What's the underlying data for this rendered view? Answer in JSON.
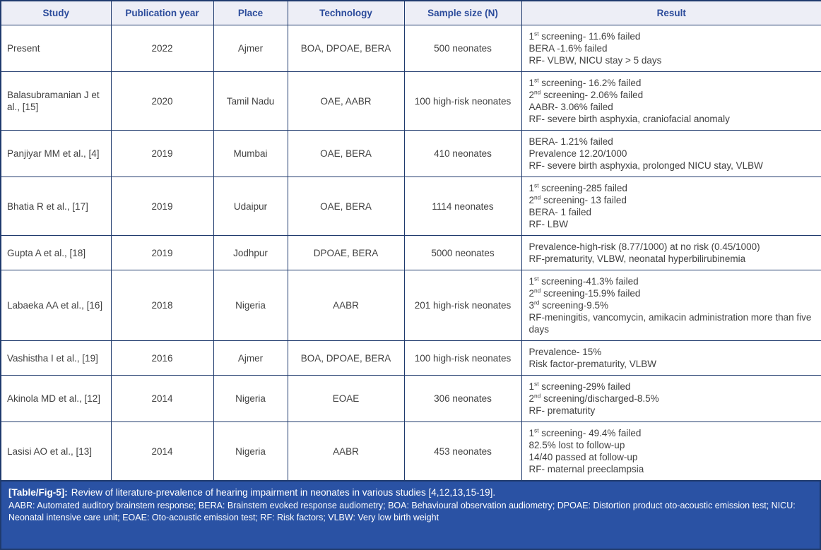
{
  "table": {
    "columns": [
      {
        "key": "study",
        "label": "Study"
      },
      {
        "key": "year",
        "label": "Publication year"
      },
      {
        "key": "place",
        "label": "Place"
      },
      {
        "key": "technology",
        "label": "Technology"
      },
      {
        "key": "sample",
        "label": "Sample size (N)"
      },
      {
        "key": "result",
        "label": "Result"
      }
    ],
    "rows": [
      {
        "study": "Present",
        "year": "2022",
        "place": "Ajmer",
        "technology": "BOA, DPOAE, BERA",
        "sample": "500 neonates",
        "result": [
          "1st screening- 11.6% failed",
          "BERA -1.6% failed",
          "RF- VLBW, NICU stay > 5 days"
        ]
      },
      {
        "study": "Balasubramanian J et al., [15]",
        "year": "2020",
        "place": "Tamil Nadu",
        "technology": "OAE, AABR",
        "sample": "100 high-risk neonates",
        "result": [
          "1st screening- 16.2% failed",
          "2nd screening- 2.06% failed",
          "AABR- 3.06% failed",
          "RF- severe birth asphyxia, craniofacial anomaly"
        ]
      },
      {
        "study": "Panjiyar MM et al., [4]",
        "year": "2019",
        "place": "Mumbai",
        "technology": "OAE, BERA",
        "sample": "410 neonates",
        "result": [
          "BERA- 1.21% failed",
          "Prevalence 12.20/1000",
          "RF- severe birth asphyxia, prolonged NICU stay, VLBW"
        ]
      },
      {
        "study": "Bhatia R et al., [17]",
        "year": "2019",
        "place": "Udaipur",
        "technology": "OAE, BERA",
        "sample": "1114 neonates",
        "result": [
          "1st screening-285 failed",
          "2nd screening- 13 failed",
          "BERA- 1 failed",
          "RF- LBW"
        ]
      },
      {
        "study": "Gupta A et al., [18]",
        "year": "2019",
        "place": "Jodhpur",
        "technology": "DPOAE, BERA",
        "sample": "5000 neonates",
        "result": [
          "Prevalence-high-risk (8.77/1000) at no risk (0.45/1000)",
          "RF-prematurity, VLBW, neonatal hyperbilirubinemia"
        ]
      },
      {
        "study": "Labaeka AA et al., [16]",
        "year": "2018",
        "place": "Nigeria",
        "technology": "AABR",
        "sample": "201 high-risk neonates",
        "result": [
          "1st screening-41.3% failed",
          "2nd screening-15.9% failed",
          "3rd screening-9.5%",
          "RF-meningitis, vancomycin, amikacin administration more than five days"
        ]
      },
      {
        "study": "Vashistha I et al., [19]",
        "year": "2016",
        "place": "Ajmer",
        "technology": "BOA, DPOAE, BERA",
        "sample": "100 high-risk neonates",
        "result": [
          "Prevalence- 15%",
          "Risk factor-prematurity, VLBW"
        ]
      },
      {
        "study": "Akinola MD et al., [12]",
        "year": "2014",
        "place": "Nigeria",
        "technology": "EOAE",
        "sample": "306 neonates",
        "result": [
          "1st screening-29% failed",
          "2nd screening/discharged-8.5%",
          "RF- prematurity"
        ]
      },
      {
        "study": "Lasisi AO et al., [13]",
        "year": "2014",
        "place": "Nigeria",
        "technology": "AABR",
        "sample": "453 neonates",
        "result": [
          "1st screening- 49.4% failed",
          "82.5% lost to follow-up",
          "14/40 passed at follow-up",
          "RF- maternal preeclampsia"
        ]
      }
    ]
  },
  "footer": {
    "caption_label": "[Table/Fig-5]:",
    "caption_text": "Review of literature-prevalence of hearing impairment in neonates in various studies [4,12,13,15-19].",
    "abbreviations": "AABR: Automated auditory brainstem response; BERA: Brainstem evoked response audiometry; BOA: Behavioural observation audiometry; DPOAE: Distortion product oto-acoustic emission test; NICU: Neonatal intensive care unit; EOAE: Oto-acoustic emission test; RF: Risk factors; VLBW: Very low birth weight"
  },
  "colors": {
    "border": "#1f3a6d",
    "header_bg": "#edeef6",
    "header_text": "#2b4b9b",
    "body_text": "#414141",
    "footer_bg": "#2a52a4",
    "footer_text": "#ffffff"
  }
}
